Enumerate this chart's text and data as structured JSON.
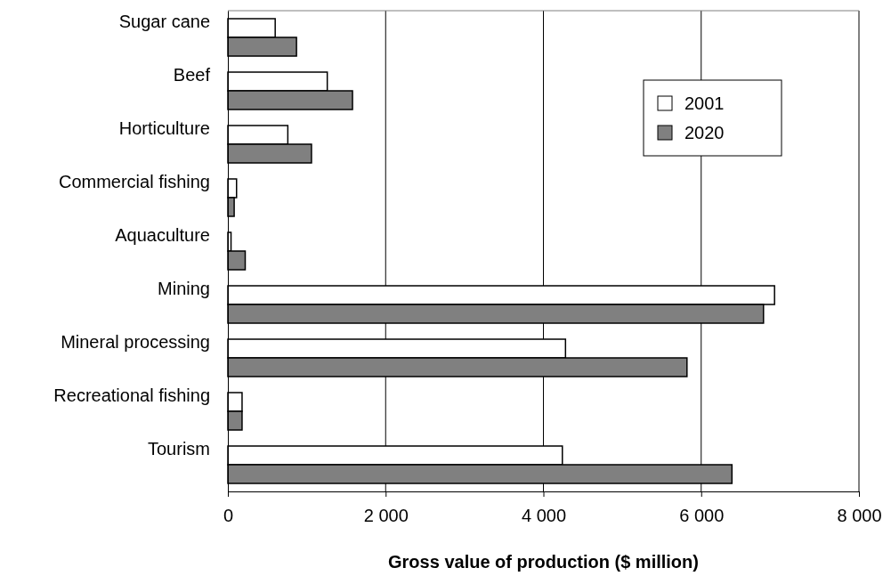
{
  "chart_data": {
    "type": "bar",
    "orientation": "horizontal",
    "xlabel": "Gross value of production ($ million)",
    "categories": [
      "Sugar cane",
      "Beef",
      "Horticulture",
      "Commercial fishing",
      "Aquaculture",
      "Mining",
      "Mineral processing",
      "Recreational fishing",
      "Tourism "
    ],
    "series": [
      {
        "name": "2001",
        "color": "#ffffff",
        "values": [
          600,
          1260,
          760,
          110,
          40,
          6930,
          4280,
          180,
          4240
        ]
      },
      {
        "name": "2020",
        "color": "#808080",
        "values": [
          870,
          1580,
          1060,
          80,
          220,
          6790,
          5820,
          180,
          6390
        ]
      }
    ],
    "xlim": [
      0,
      8000
    ],
    "xticks": [
      0,
      {
        "value": 2000,
        "label": "2 000"
      },
      {
        "value": 4000,
        "label": "4 000"
      },
      {
        "value": 6000,
        "label": "6 000"
      },
      {
        "value": 8000,
        "label": "8 000"
      }
    ],
    "grid": "x",
    "legend": "top right"
  }
}
